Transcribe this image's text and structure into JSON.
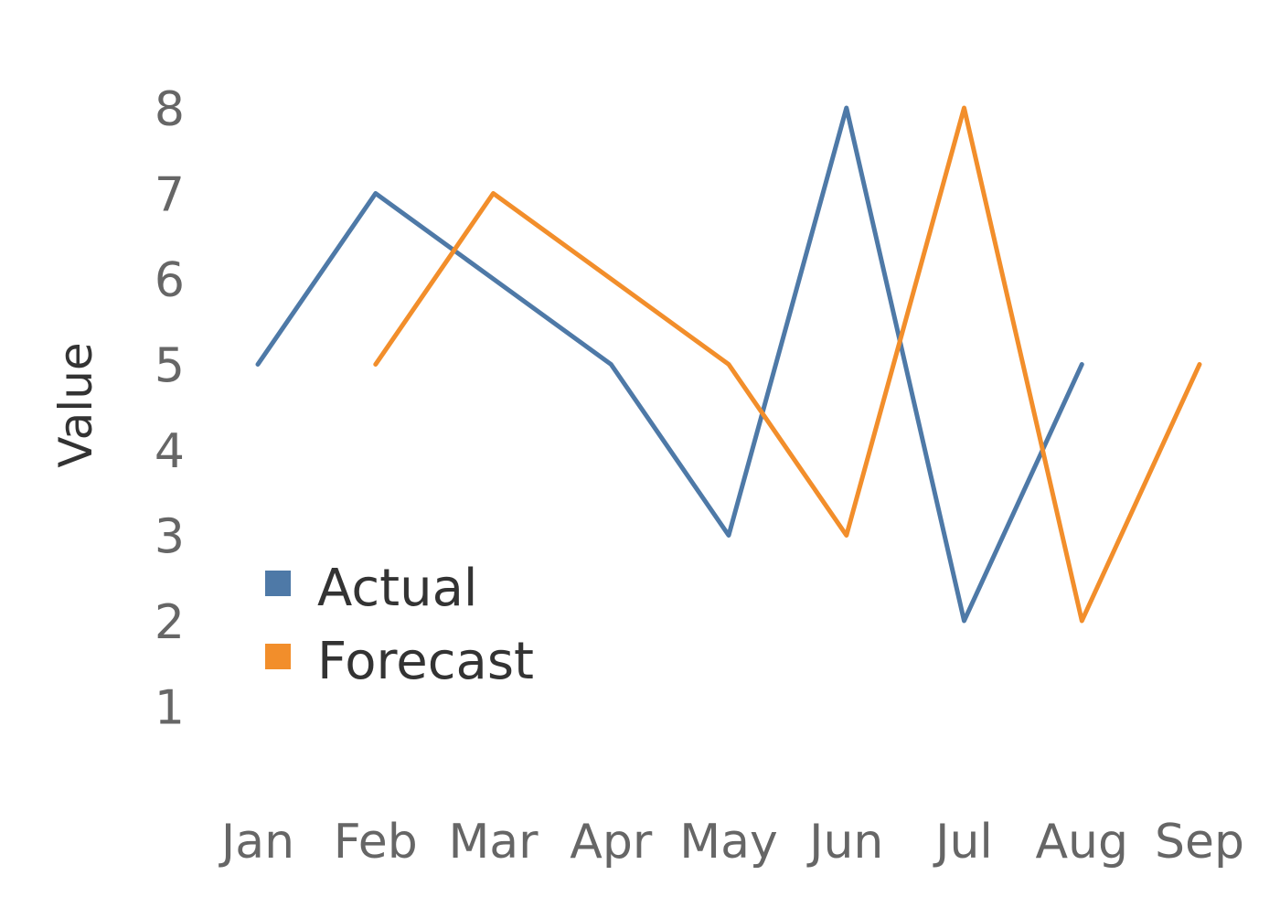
{
  "chart_data": {
    "type": "line",
    "title": "",
    "xlabel": "",
    "ylabel": "Value",
    "categories": [
      "Jan",
      "Feb",
      "Mar",
      "Apr",
      "May",
      "Jun",
      "Jul",
      "Aug",
      "Sep"
    ],
    "y_ticks": [
      "1",
      "2",
      "3",
      "4",
      "5",
      "6",
      "7",
      "8"
    ],
    "ylim": [
      0.5,
      8.5
    ],
    "grid": false,
    "legend_position": "lower-left",
    "series": [
      {
        "name": "Actual",
        "color": "#4e79a7",
        "values": [
          5,
          7,
          6,
          5,
          3,
          8,
          2,
          5,
          null
        ]
      },
      {
        "name": "Forecast",
        "color": "#f28e2b",
        "values": [
          null,
          5,
          7,
          6,
          5,
          3,
          8,
          2,
          5
        ]
      }
    ]
  }
}
